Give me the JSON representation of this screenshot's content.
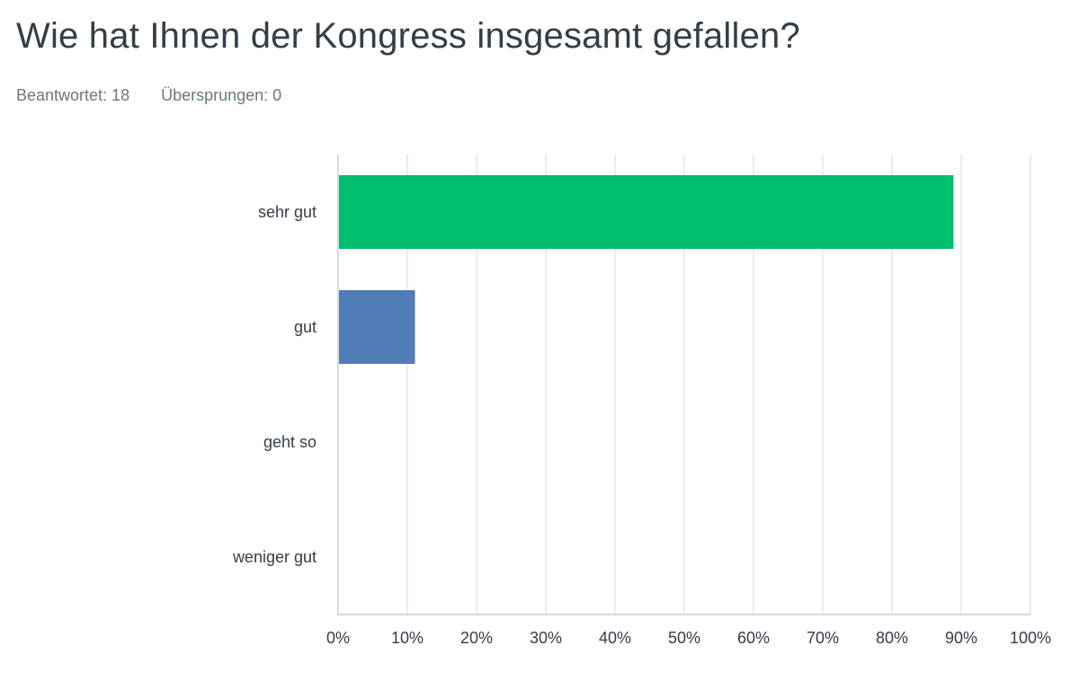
{
  "question": {
    "title": "Wie hat Ihnen der Kongress insgesamt gefallen?",
    "answered_label": "Beantwortet: 18",
    "skipped_label": "Übersprungen: 0"
  },
  "chart_data": {
    "type": "bar",
    "orientation": "horizontal",
    "categories": [
      "sehr gut",
      "gut",
      "geht so",
      "weniger gut"
    ],
    "values": [
      88.89,
      11.11,
      0,
      0
    ],
    "colors": [
      "#00bf6f",
      "#507cb6",
      "#00bf6f",
      "#00bf6f"
    ],
    "xlim": [
      0,
      100
    ],
    "xticks": [
      "0%",
      "10%",
      "20%",
      "30%",
      "40%",
      "50%",
      "60%",
      "70%",
      "80%",
      "90%",
      "100%"
    ],
    "grid": true,
    "title": "",
    "xlabel": "",
    "ylabel": ""
  }
}
